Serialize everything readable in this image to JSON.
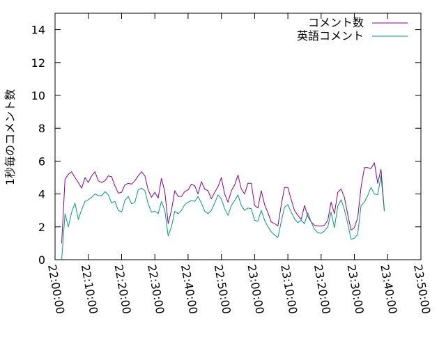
{
  "chart_data": {
    "type": "line",
    "ylabel": "1秒毎のコメント数",
    "xlabel": "",
    "ylim": [
      0,
      15
    ],
    "yticks": [
      "0",
      "2",
      "4",
      "6",
      "8",
      "10",
      "12",
      "14"
    ],
    "xlim": [
      "22:00:00",
      "23:50:00"
    ],
    "xticks": [
      "22:00:00",
      "22:10:00",
      "22:20:00",
      "22:30:00",
      "22:40:00",
      "22:50:00",
      "23:00:00",
      "23:10:00",
      "23:20:00",
      "23:30:00",
      "23:40:00",
      "23:50:00"
    ],
    "grid": false,
    "legend_position": "top-right",
    "x_step_minutes": 1,
    "x_start": "22:02:00",
    "series": [
      {
        "name": "コメント数",
        "color": "#8b008b",
        "values": [
          1.0,
          4.9,
          5.2,
          5.35,
          5.0,
          4.7,
          4.35,
          5.0,
          4.7,
          5.1,
          5.35,
          4.8,
          4.7,
          4.8,
          5.1,
          5.05,
          4.5,
          4.05,
          4.1,
          4.55,
          4.65,
          4.6,
          4.8,
          5.1,
          5.35,
          5.1,
          4.25,
          3.8,
          4.1,
          3.75,
          4.95,
          4.15,
          2.2,
          3.0,
          4.2,
          3.85,
          3.85,
          4.15,
          4.25,
          4.6,
          4.5,
          4.0,
          4.75,
          4.3,
          4.2,
          3.7,
          4.1,
          4.45,
          5.0,
          4.0,
          3.5,
          4.2,
          4.55,
          5.15,
          4.3,
          4.0,
          4.65,
          4.65,
          3.3,
          3.15,
          4.2,
          3.35,
          2.85,
          2.3,
          2.2,
          2.05,
          3.3,
          4.4,
          4.4,
          3.65,
          3.0,
          2.7,
          2.45,
          3.3,
          2.65,
          2.3,
          2.1,
          2.05,
          2.05,
          2.1,
          2.4,
          3.5,
          2.8,
          4.1,
          4.3,
          3.8,
          2.75,
          1.8,
          1.95,
          2.55,
          4.4,
          5.6,
          5.6,
          5.55,
          5.9,
          4.65,
          5.5,
          3.0
        ]
      },
      {
        "name": "英語コメント",
        "color": "#009e73",
        "values": [
          0.0,
          2.8,
          2.0,
          2.9,
          3.45,
          2.45,
          3.05,
          3.55,
          3.65,
          3.8,
          4.0,
          3.9,
          3.9,
          4.15,
          3.95,
          3.45,
          3.55,
          3.0,
          2.9,
          3.6,
          3.85,
          3.4,
          3.5,
          4.25,
          4.35,
          4.2,
          3.4,
          2.9,
          2.95,
          2.8,
          3.55,
          3.0,
          1.45,
          2.0,
          2.95,
          2.8,
          3.0,
          3.35,
          3.5,
          3.6,
          3.55,
          3.85,
          3.45,
          2.95,
          2.8,
          3.0,
          3.45,
          3.95,
          3.7,
          3.1,
          2.7,
          3.3,
          3.6,
          3.95,
          3.3,
          3.0,
          3.15,
          3.1,
          2.4,
          2.35,
          3.0,
          2.4,
          2.0,
          1.7,
          1.5,
          1.35,
          2.3,
          3.2,
          3.35,
          2.9,
          2.5,
          2.25,
          2.4,
          2.2,
          2.85,
          2.3,
          1.85,
          1.65,
          1.6,
          1.75,
          2.0,
          2.9,
          1.95,
          3.25,
          3.65,
          3.05,
          2.2,
          1.25,
          1.3,
          1.55,
          3.3,
          3.5,
          3.9,
          4.4,
          4.0,
          3.95,
          5.1,
          2.95
        ]
      }
    ]
  }
}
